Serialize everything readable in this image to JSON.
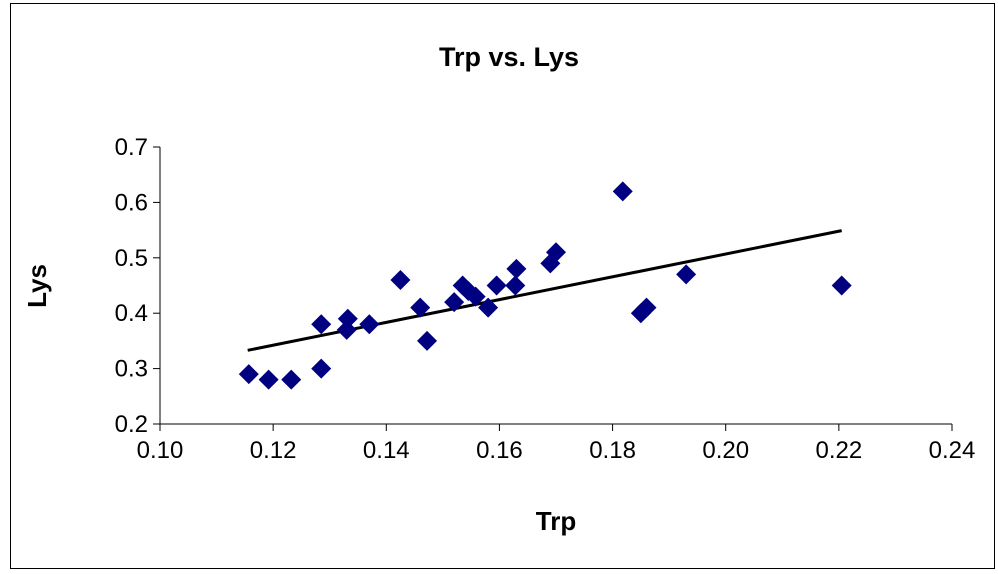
{
  "chart_data": {
    "type": "scatter",
    "title": "Trp vs. Lys",
    "xlabel": "Trp",
    "ylabel": "Lys",
    "xlim": [
      0.1,
      0.24
    ],
    "ylim": [
      0.2,
      0.7
    ],
    "x_ticks": [
      "0.10",
      "0.12",
      "0.14",
      "0.16",
      "0.18",
      "0.20",
      "0.22",
      "0.24"
    ],
    "y_ticks": [
      "0.2",
      "0.3",
      "0.4",
      "0.5",
      "0.6",
      "0.7"
    ],
    "grid": false,
    "legend": "none",
    "series": [
      {
        "marker": "diamond",
        "color": "#000080",
        "points": [
          [
            0.1157,
            0.29
          ],
          [
            0.1192,
            0.28
          ],
          [
            0.1232,
            0.28
          ],
          [
            0.1285,
            0.3
          ],
          [
            0.1285,
            0.38
          ],
          [
            0.133,
            0.37
          ],
          [
            0.1332,
            0.39
          ],
          [
            0.137,
            0.38
          ],
          [
            0.1425,
            0.46
          ],
          [
            0.146,
            0.41
          ],
          [
            0.1472,
            0.35
          ],
          [
            0.152,
            0.42
          ],
          [
            0.1535,
            0.45
          ],
          [
            0.1545,
            0.44
          ],
          [
            0.1558,
            0.43
          ],
          [
            0.158,
            0.41
          ],
          [
            0.1595,
            0.45
          ],
          [
            0.1628,
            0.45
          ],
          [
            0.163,
            0.48
          ],
          [
            0.169,
            0.49
          ],
          [
            0.17,
            0.51
          ],
          [
            0.1818,
            0.62
          ],
          [
            0.185,
            0.4
          ],
          [
            0.186,
            0.41
          ],
          [
            0.193,
            0.47
          ],
          [
            0.2205,
            0.45
          ]
        ]
      }
    ],
    "trendline": {
      "type": "linear",
      "color": "#000000",
      "x": [
        0.1155,
        0.2205
      ],
      "y": [
        0.333,
        0.549
      ]
    }
  }
}
